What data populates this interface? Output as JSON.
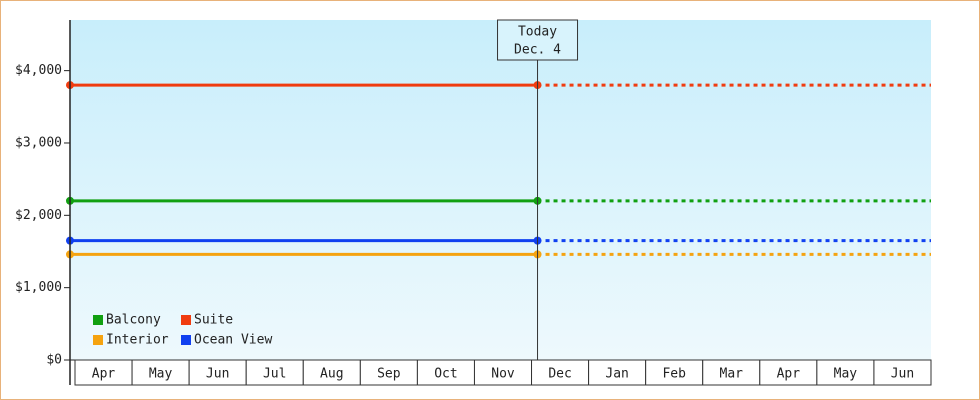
{
  "chart_data": {
    "type": "line",
    "categories": [
      "Apr",
      "May",
      "Jun",
      "Jul",
      "Aug",
      "Sep",
      "Oct",
      "Nov",
      "Dec",
      "Jan",
      "Feb",
      "Mar",
      "Apr",
      "May",
      "Jun"
    ],
    "today": {
      "lines": [
        "Today",
        "Dec. 4"
      ],
      "category": "Dec"
    },
    "series": [
      {
        "name": "Balcony",
        "color": "#11a011",
        "value": 2200
      },
      {
        "name": "Suite",
        "color": "#f03c10",
        "value": 3800
      },
      {
        "name": "Interior",
        "color": "#f5a310",
        "value": 1460
      },
      {
        "name": "Ocean View",
        "color": "#1040f0",
        "value": 1650
      }
    ],
    "ylim": [
      0,
      4700
    ],
    "yticks": [
      {
        "value": 0,
        "label": "$0"
      },
      {
        "value": 1000,
        "label": "$1,000"
      },
      {
        "value": 2000,
        "label": "$2,000"
      },
      {
        "value": 3000,
        "label": "$3,000"
      },
      {
        "value": 4000,
        "label": "$4,000"
      }
    ],
    "legend": "lower-left"
  }
}
